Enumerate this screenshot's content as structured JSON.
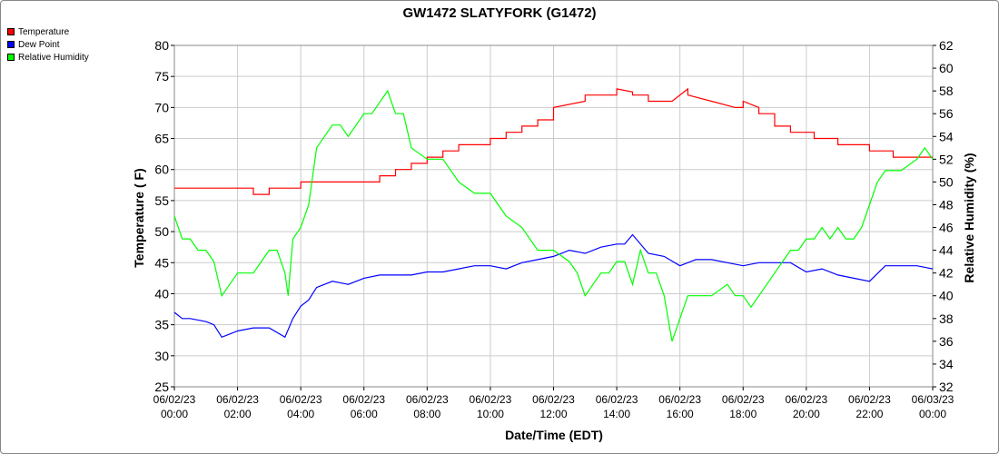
{
  "chart_data": {
    "type": "line",
    "title": "GW1472 SLATYFORK (G1472)",
    "xlabel": "Date/Time (EDT)",
    "ylabel_left": "Temperature ( F)",
    "ylabel_right": "Relative Humidity (%)",
    "x_range_hours": [
      0,
      24
    ],
    "x_ticks": [
      {
        "date": "06/02/23",
        "time": "00:00"
      },
      {
        "date": "06/02/23",
        "time": "02:00"
      },
      {
        "date": "06/02/23",
        "time": "04:00"
      },
      {
        "date": "06/02/23",
        "time": "06:00"
      },
      {
        "date": "06/02/23",
        "time": "08:00"
      },
      {
        "date": "06/02/23",
        "time": "10:00"
      },
      {
        "date": "06/02/23",
        "time": "12:00"
      },
      {
        "date": "06/02/23",
        "time": "14:00"
      },
      {
        "date": "06/02/23",
        "time": "16:00"
      },
      {
        "date": "06/02/23",
        "time": "18:00"
      },
      {
        "date": "06/02/23",
        "time": "20:00"
      },
      {
        "date": "06/02/23",
        "time": "22:00"
      },
      {
        "date": "06/03/23",
        "time": "00:00"
      }
    ],
    "ylim_left": [
      25,
      80
    ],
    "yticks_left": [
      25,
      30,
      35,
      40,
      45,
      50,
      55,
      60,
      65,
      70,
      75,
      80
    ],
    "ylim_right": [
      32,
      62
    ],
    "yticks_right": [
      32,
      34,
      36,
      38,
      40,
      42,
      44,
      46,
      48,
      50,
      52,
      54,
      56,
      58,
      60,
      62
    ],
    "grid": true,
    "legend_position": "top-left",
    "series": [
      {
        "name": "Temperature",
        "axis": "left",
        "color": "#ff0000",
        "x": [
          0,
          2.5,
          2.5,
          3,
          3,
          4,
          4,
          6.5,
          6.5,
          7,
          7,
          7.5,
          7.5,
          8,
          8,
          8.5,
          8.5,
          9,
          9,
          10,
          10,
          10.5,
          10.5,
          11,
          11,
          11.5,
          11.5,
          12,
          12,
          13,
          13,
          14,
          14,
          14.5,
          14.5,
          15,
          15,
          15.75,
          16.25,
          16.25,
          17,
          17,
          17.75,
          18,
          18,
          18.5,
          18.5,
          19,
          19,
          19.5,
          19.5,
          20.25,
          20.25,
          21,
          21,
          22,
          22,
          22.75,
          22.75,
          24
        ],
        "y": [
          57,
          57,
          56,
          56,
          57,
          57,
          58,
          58,
          59,
          59,
          60,
          60,
          61,
          61,
          62,
          62,
          63,
          63,
          64,
          64,
          65,
          65,
          66,
          66,
          67,
          67,
          68,
          68,
          70,
          71,
          72,
          72,
          73,
          72.5,
          72,
          72,
          71,
          71,
          73,
          72,
          71,
          71,
          70,
          70,
          71,
          70,
          69,
          69,
          67,
          67,
          66,
          66,
          65,
          65,
          64,
          64,
          63,
          63,
          62,
          62
        ]
      },
      {
        "name": "Dew Point",
        "axis": "left",
        "color": "#0000ff",
        "x": [
          0,
          0.25,
          0.5,
          1,
          1.25,
          1.5,
          1.75,
          2,
          2.5,
          3,
          3.5,
          3.75,
          4,
          4.25,
          4.5,
          5,
          5.5,
          6,
          6.5,
          7,
          7.5,
          8,
          8.5,
          9,
          9.5,
          10,
          10.5,
          11,
          11.5,
          12,
          12.5,
          13,
          13.5,
          14,
          14.25,
          14.5,
          15,
          15.5,
          16,
          16.5,
          17,
          17.5,
          18,
          18.5,
          19,
          19.5,
          20,
          20.5,
          21,
          21.5,
          22,
          22.5,
          23,
          23.5,
          24
        ],
        "y": [
          37,
          36,
          36,
          35.5,
          35,
          33,
          33.5,
          34,
          34.5,
          34.5,
          33,
          36,
          38,
          39,
          41,
          42,
          41.5,
          42.5,
          43,
          43,
          43,
          43.5,
          43.5,
          44,
          44.5,
          44.5,
          44,
          45,
          45.5,
          46,
          47,
          46.5,
          47.5,
          48,
          48,
          49.5,
          46.5,
          46,
          44.5,
          45.5,
          45.5,
          45,
          44.5,
          45,
          45,
          45,
          43.5,
          44,
          43,
          42.5,
          42,
          44.5,
          44.5,
          44.5,
          44
        ]
      },
      {
        "name": "Relative Humidity",
        "axis": "right",
        "color": "#00ff00",
        "x": [
          0,
          0.25,
          0.5,
          0.75,
          1,
          1.25,
          1.5,
          1.75,
          2,
          2.5,
          2.75,
          3,
          3.25,
          3.5,
          3.6,
          3.75,
          4,
          4.25,
          4.5,
          4.75,
          5,
          5.25,
          5.5,
          6,
          6.25,
          6.5,
          6.75,
          7,
          7.25,
          7.5,
          8,
          8.25,
          8.5,
          9,
          9.5,
          10,
          10.25,
          10.5,
          11,
          11.5,
          12,
          12.5,
          12.75,
          13,
          13.25,
          13.5,
          13.75,
          14,
          14.25,
          14.5,
          14.75,
          15,
          15.25,
          15.5,
          15.75,
          16,
          16.25,
          16.5,
          17,
          17.5,
          17.75,
          18,
          18.25,
          18.5,
          18.75,
          19,
          19.25,
          19.5,
          19.75,
          20,
          20.25,
          20.5,
          20.75,
          21,
          21.25,
          21.5,
          21.75,
          22,
          22.25,
          22.5,
          23,
          23.5,
          23.75,
          24
        ],
        "y": [
          47,
          45,
          45,
          44,
          44,
          43,
          40,
          41,
          42,
          42,
          43,
          44,
          44,
          42,
          40,
          45,
          46,
          48,
          53,
          54,
          55,
          55,
          54,
          56,
          56,
          57,
          58,
          56,
          56,
          53,
          52,
          52,
          52,
          50,
          49,
          49,
          48,
          47,
          46,
          44,
          44,
          43,
          42,
          40,
          41,
          42,
          42,
          43,
          43,
          41,
          44,
          42,
          42,
          40,
          36,
          38,
          40,
          40,
          40,
          41,
          40,
          40,
          39,
          40,
          41,
          42,
          43,
          44,
          44,
          45,
          45,
          46,
          45,
          46,
          45,
          45,
          46,
          48,
          50,
          51,
          51,
          52,
          53,
          52
        ]
      }
    ]
  }
}
